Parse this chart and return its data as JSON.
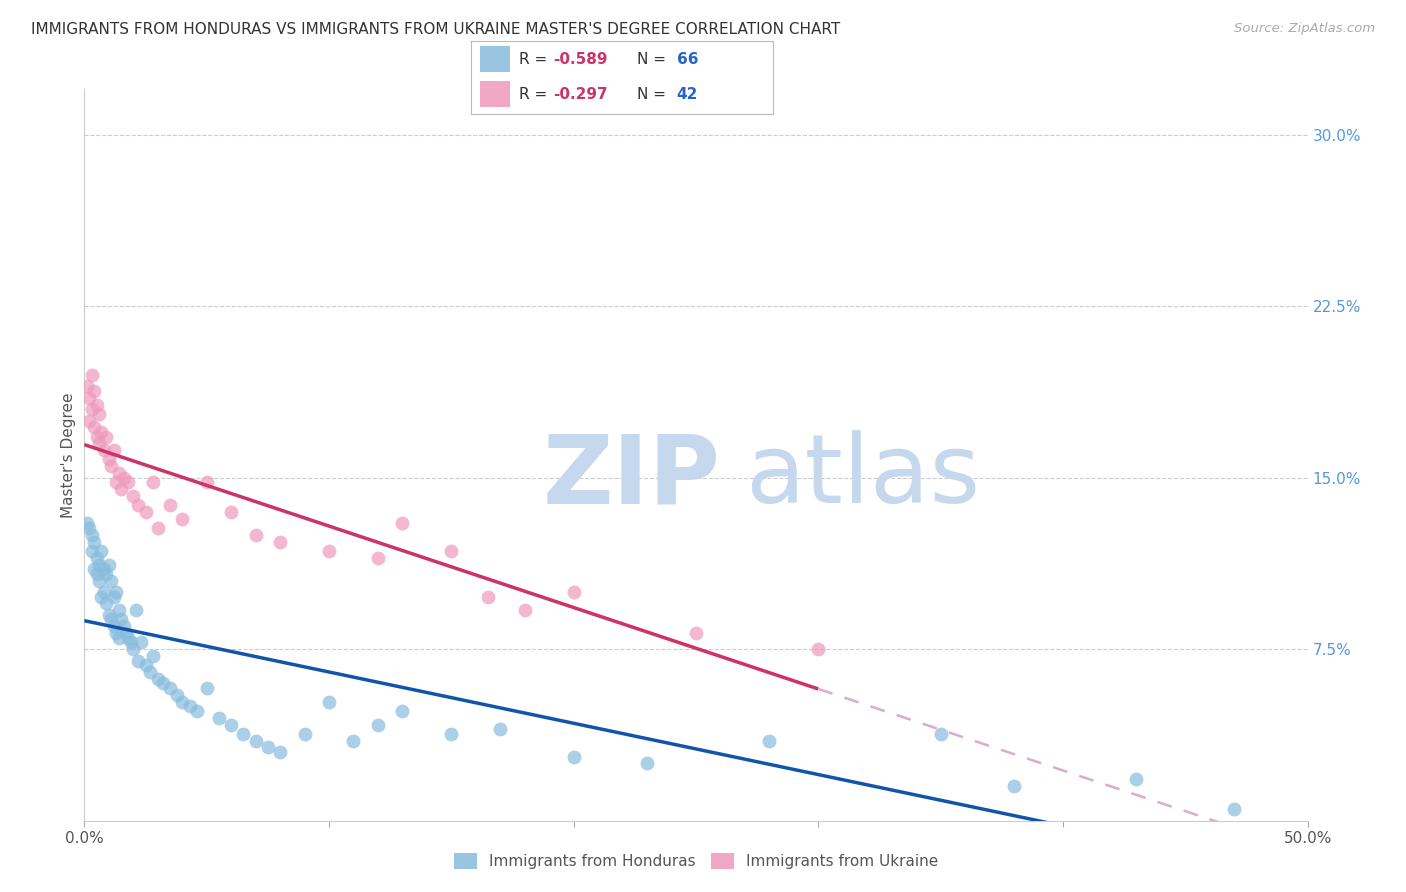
{
  "title": "IMMIGRANTS FROM HONDURAS VS IMMIGRANTS FROM UKRAINE MASTER'S DEGREE CORRELATION CHART",
  "source": "Source: ZipAtlas.com",
  "ylabel": "Master's Degree",
  "xlim": [
    0.0,
    0.5
  ],
  "ylim": [
    0.0,
    0.32
  ],
  "yticks_right": [
    0.0,
    0.075,
    0.15,
    0.225,
    0.3
  ],
  "yticklabels_right": [
    "",
    "7.5%",
    "15.0%",
    "22.5%",
    "30.0%"
  ],
  "background_color": "#ffffff",
  "grid_color": "#cccccc",
  "right_tick_color": "#5599dd",
  "honduras_color": "#88bbdd",
  "ukraine_color": "#ee99bb",
  "honduras_alpha": 0.7,
  "ukraine_alpha": 0.7,
  "marker_size": 100,
  "honduras_trendline_color": "#1155aa",
  "ukraine_trendline_color": "#cc3366",
  "ukraine_dashed_color": "#ddaacc",
  "watermark_zip_color": "#c5d8ee",
  "watermark_atlas_color": "#c5d8ee",
  "honduras_x": [
    0.001,
    0.002,
    0.003,
    0.003,
    0.004,
    0.004,
    0.005,
    0.005,
    0.006,
    0.006,
    0.007,
    0.007,
    0.008,
    0.008,
    0.009,
    0.009,
    0.01,
    0.01,
    0.011,
    0.011,
    0.012,
    0.012,
    0.013,
    0.013,
    0.014,
    0.014,
    0.015,
    0.016,
    0.017,
    0.018,
    0.019,
    0.02,
    0.021,
    0.022,
    0.023,
    0.025,
    0.027,
    0.028,
    0.03,
    0.032,
    0.035,
    0.038,
    0.04,
    0.043,
    0.046,
    0.05,
    0.055,
    0.06,
    0.065,
    0.07,
    0.075,
    0.08,
    0.09,
    0.1,
    0.11,
    0.12,
    0.13,
    0.15,
    0.17,
    0.2,
    0.23,
    0.28,
    0.35,
    0.38,
    0.43,
    0.47
  ],
  "honduras_y": [
    0.13,
    0.128,
    0.125,
    0.118,
    0.122,
    0.11,
    0.115,
    0.108,
    0.112,
    0.105,
    0.118,
    0.098,
    0.11,
    0.1,
    0.108,
    0.095,
    0.112,
    0.09,
    0.105,
    0.088,
    0.098,
    0.085,
    0.1,
    0.082,
    0.092,
    0.08,
    0.088,
    0.085,
    0.082,
    0.08,
    0.078,
    0.075,
    0.092,
    0.07,
    0.078,
    0.068,
    0.065,
    0.072,
    0.062,
    0.06,
    0.058,
    0.055,
    0.052,
    0.05,
    0.048,
    0.058,
    0.045,
    0.042,
    0.038,
    0.035,
    0.032,
    0.03,
    0.038,
    0.052,
    0.035,
    0.042,
    0.048,
    0.038,
    0.04,
    0.028,
    0.025,
    0.035,
    0.038,
    0.015,
    0.018,
    0.005
  ],
  "ukraine_x": [
    0.001,
    0.002,
    0.002,
    0.003,
    0.003,
    0.004,
    0.004,
    0.005,
    0.005,
    0.006,
    0.006,
    0.007,
    0.008,
    0.009,
    0.01,
    0.011,
    0.012,
    0.013,
    0.014,
    0.015,
    0.016,
    0.018,
    0.02,
    0.022,
    0.025,
    0.028,
    0.03,
    0.035,
    0.04,
    0.05,
    0.06,
    0.07,
    0.08,
    0.1,
    0.12,
    0.13,
    0.15,
    0.165,
    0.18,
    0.2,
    0.25,
    0.3
  ],
  "ukraine_y": [
    0.19,
    0.185,
    0.175,
    0.195,
    0.18,
    0.188,
    0.172,
    0.182,
    0.168,
    0.178,
    0.165,
    0.17,
    0.162,
    0.168,
    0.158,
    0.155,
    0.162,
    0.148,
    0.152,
    0.145,
    0.15,
    0.148,
    0.142,
    0.138,
    0.135,
    0.148,
    0.128,
    0.138,
    0.132,
    0.148,
    0.135,
    0.125,
    0.122,
    0.118,
    0.115,
    0.13,
    0.118,
    0.098,
    0.092,
    0.1,
    0.082,
    0.075
  ],
  "legend_r_color": "#cc3366",
  "legend_n_color": "#2266cc",
  "legend_box_color": "#aabbcc"
}
